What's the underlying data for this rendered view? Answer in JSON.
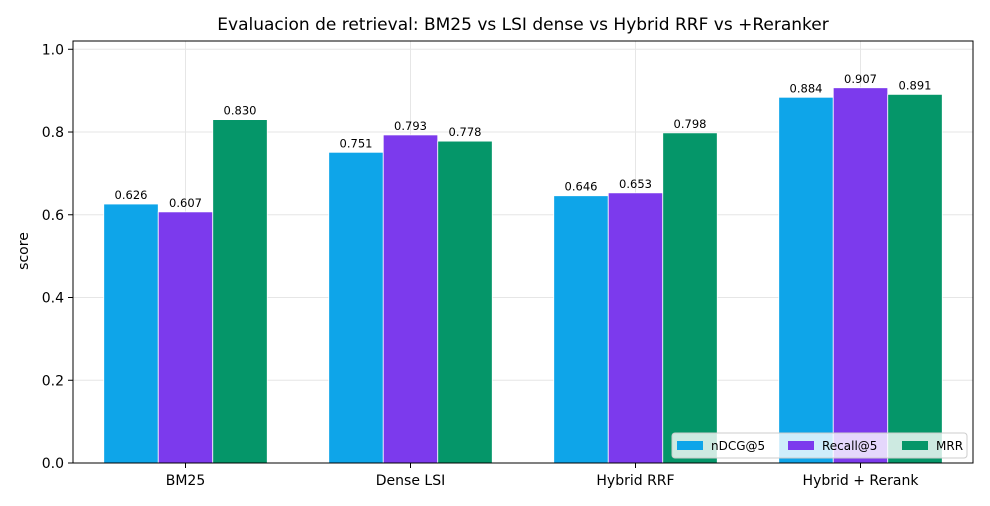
{
  "chart_data": {
    "type": "bar",
    "title": "Evaluacion de retrieval: BM25 vs LSI dense vs Hybrid RRF vs +Reranker",
    "xlabel": "",
    "ylabel": "score",
    "ylim": [
      0,
      1.02
    ],
    "yticks": [
      "0.0",
      "0.2",
      "0.4",
      "0.6",
      "0.8",
      "1.0"
    ],
    "grid": true,
    "legend_position": "bottom-right",
    "categories": [
      "BM25",
      "Dense LSI",
      "Hybrid RRF",
      "Hybrid + Rerank"
    ],
    "series": [
      {
        "name": "nDCG@5",
        "color": "#0ea5e9",
        "values": [
          0.626,
          0.751,
          0.646,
          0.884
        ],
        "labels": [
          "0.626",
          "0.751",
          "0.646",
          "0.884"
        ]
      },
      {
        "name": "Recall@5",
        "color": "#7c3aed",
        "values": [
          0.607,
          0.793,
          0.653,
          0.907
        ],
        "labels": [
          "0.607",
          "0.793",
          "0.653",
          "0.907"
        ]
      },
      {
        "name": "MRR",
        "color": "#059669",
        "values": [
          0.83,
          0.778,
          0.798,
          0.891
        ],
        "labels": [
          "0.830",
          "0.778",
          "0.798",
          "0.891"
        ]
      }
    ]
  }
}
